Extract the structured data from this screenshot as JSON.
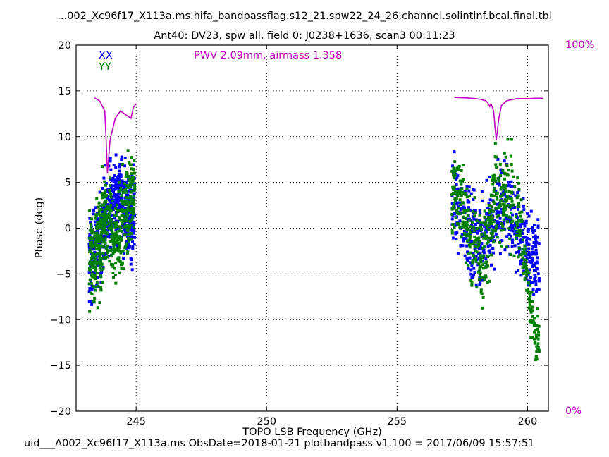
{
  "title_line1": "...002_Xc96f17_X113a.ms.hifa_bandpassflag.s12_21.spw22_24_26.channel.solintinf.bcal.final.tbl",
  "title_line2": "Ant40: DV23,  spw all,  field 0: J0238+1636,  scan3  00:11:23",
  "footer": "uid___A002_Xc96f17_X113a.ms  ObsDate=2018-01-21   plotbandpass v1.100 = 2017/06/09 15:57:51",
  "annotation": "PWV 2.09mm, airmass 1.358",
  "right_axis": {
    "top": "100%",
    "bottom": "0%"
  },
  "colors": {
    "xx": "#0000ff",
    "yy": "#008000",
    "atm": "#c000c0"
  },
  "chart_data": {
    "type": "scatter",
    "xlabel": "TOPO LSB Frequency (GHz)",
    "ylabel": "Phase (deg)",
    "xlim": [
      242.7,
      260.8
    ],
    "ylim": [
      -20,
      20
    ],
    "xticks": [
      245,
      250,
      255,
      260
    ],
    "yticks": [
      -20,
      -15,
      -10,
      -5,
      0,
      5,
      10,
      15,
      20
    ],
    "grid": true,
    "legend_position": "top-left",
    "series": [
      {
        "name": "XX",
        "color": "#0000ff",
        "x": [
          243.4,
          243.6,
          243.8,
          244.0,
          244.2,
          244.4,
          244.6,
          244.8,
          257.3,
          257.6,
          257.9,
          258.2,
          258.5,
          258.8,
          259.1,
          259.4,
          259.7,
          260.0,
          260.3
        ],
        "y": [
          -3.0,
          -2.0,
          0.5,
          2.0,
          3.0,
          3.5,
          2.0,
          1.5,
          2.5,
          0.0,
          -1.0,
          -1.5,
          -0.5,
          1.5,
          2.5,
          1.5,
          0.0,
          -2.0,
          -3.5
        ]
      },
      {
        "name": "YY",
        "color": "#008000",
        "x": [
          243.4,
          243.6,
          243.8,
          244.0,
          244.2,
          244.4,
          244.6,
          244.8,
          257.3,
          257.6,
          257.9,
          258.2,
          258.5,
          258.8,
          259.1,
          259.4,
          259.7,
          260.0,
          260.3
        ],
        "y": [
          -3.5,
          -2.0,
          1.5,
          0.5,
          -1.5,
          -0.5,
          2.0,
          3.5,
          4.0,
          1.0,
          -1.5,
          -3.0,
          -1.0,
          3.0,
          3.5,
          3.0,
          1.0,
          -6.0,
          -12.0
        ]
      },
      {
        "name": "atmospheric transmission",
        "color": "#c000c0",
        "axis": "right",
        "x": [
          243.4,
          243.6,
          243.8,
          243.85,
          243.9,
          244.0,
          244.2,
          244.4,
          244.8,
          244.9,
          245.0,
          257.2,
          257.6,
          258.0,
          258.2,
          258.4,
          258.5,
          258.55,
          258.6,
          258.7,
          258.75,
          258.8,
          258.9,
          259.0,
          259.2,
          259.6,
          260.0,
          260.4,
          260.6
        ],
        "y": [
          85.6,
          84.8,
          82.0,
          74.0,
          65.0,
          74.0,
          80.0,
          82.0,
          80.0,
          83.0,
          84.0,
          85.7,
          85.6,
          85.4,
          85.2,
          84.8,
          84.0,
          83.2,
          84.0,
          82.0,
          78.0,
          74.0,
          80.0,
          83.5,
          84.8,
          85.4,
          85.4,
          85.5,
          85.5
        ]
      }
    ]
  }
}
